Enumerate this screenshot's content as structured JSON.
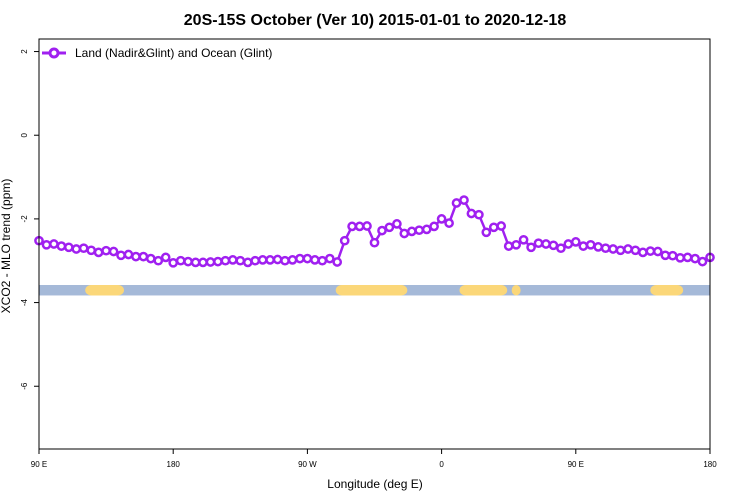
{
  "chart_data": {
    "type": "line",
    "title": "20S-15S October (Ver 10)   2015-01-01 to 2020-12-18",
    "xlabel": "Longitude (deg E)",
    "ylabel": "XCO2 - MLO trend (ppm)",
    "x_tick_labels": [
      "90 E",
      "180",
      "90 W",
      "0",
      "90 E",
      "180"
    ],
    "x_tick_values": [
      90,
      180,
      270,
      360,
      450,
      540
    ],
    "xlim": [
      90,
      540
    ],
    "ylim": [
      -7.5,
      2.3
    ],
    "y_ticks": [
      2,
      0,
      -2,
      -4,
      -6
    ],
    "legend": {
      "position": "top-left",
      "label": "Land (Nadir&Glint) and Ocean (Glint)"
    },
    "colors": {
      "series": "#a020f0",
      "ocean": "#a5b9d8",
      "land": "#fbd779"
    },
    "series": [
      {
        "name": "Land (Nadir&Glint) and Ocean (Glint)",
        "x": [
          90,
          95,
          100,
          105,
          110,
          115,
          120,
          125,
          130,
          135,
          140,
          145,
          150,
          155,
          160,
          165,
          170,
          175,
          180,
          185,
          190,
          195,
          200,
          205,
          210,
          215,
          220,
          225,
          230,
          235,
          240,
          245,
          250,
          255,
          260,
          265,
          270,
          275,
          280,
          285,
          290,
          295,
          300,
          305,
          310,
          315,
          320,
          325,
          330,
          335,
          340,
          345,
          350,
          355,
          360,
          365,
          370,
          375,
          380,
          385,
          390,
          395,
          400,
          405,
          410,
          415,
          420,
          425,
          430,
          435,
          440,
          445,
          450,
          455,
          460,
          465,
          470,
          475,
          480,
          485,
          490,
          495,
          500,
          505,
          510,
          515,
          520,
          525,
          530,
          535,
          540
        ],
        "y": [
          -2.52,
          -2.62,
          -2.6,
          -2.65,
          -2.68,
          -2.72,
          -2.7,
          -2.75,
          -2.8,
          -2.76,
          -2.78,
          -2.87,
          -2.85,
          -2.9,
          -2.9,
          -2.95,
          -3.0,
          -2.92,
          -3.05,
          -3.0,
          -3.02,
          -3.04,
          -3.04,
          -3.03,
          -3.02,
          -3.0,
          -2.98,
          -3.0,
          -3.04,
          -3.0,
          -2.98,
          -2.98,
          -2.97,
          -3.0,
          -2.98,
          -2.95,
          -2.95,
          -2.98,
          -3.0,
          -2.95,
          -3.03,
          -2.52,
          -2.18,
          -2.18,
          -2.17,
          -2.57,
          -2.28,
          -2.2,
          -2.12,
          -2.35,
          -2.3,
          -2.27,
          -2.25,
          -2.18,
          -2.0,
          -2.1,
          -1.62,
          -1.55,
          -1.87,
          -1.9,
          -2.32,
          -2.2,
          -2.17,
          -2.65,
          -2.62,
          -2.5,
          -2.68,
          -2.58,
          -2.6,
          -2.63,
          -2.7,
          -2.6,
          -2.55,
          -2.65,
          -2.62,
          -2.67,
          -2.7,
          -2.72,
          -2.75,
          -2.72,
          -2.75,
          -2.8,
          -2.77,
          -2.78,
          -2.87,
          -2.88,
          -2.93,
          -2.92,
          -2.95,
          -3.02,
          -2.92
        ]
      }
    ],
    "surface_bar": {
      "y_top": -3.58,
      "y_bottom": -3.83,
      "land_segments": [
        [
          121,
          147
        ],
        [
          289,
          337
        ],
        [
          372,
          404
        ],
        [
          407,
          413
        ],
        [
          500,
          522
        ]
      ]
    }
  }
}
